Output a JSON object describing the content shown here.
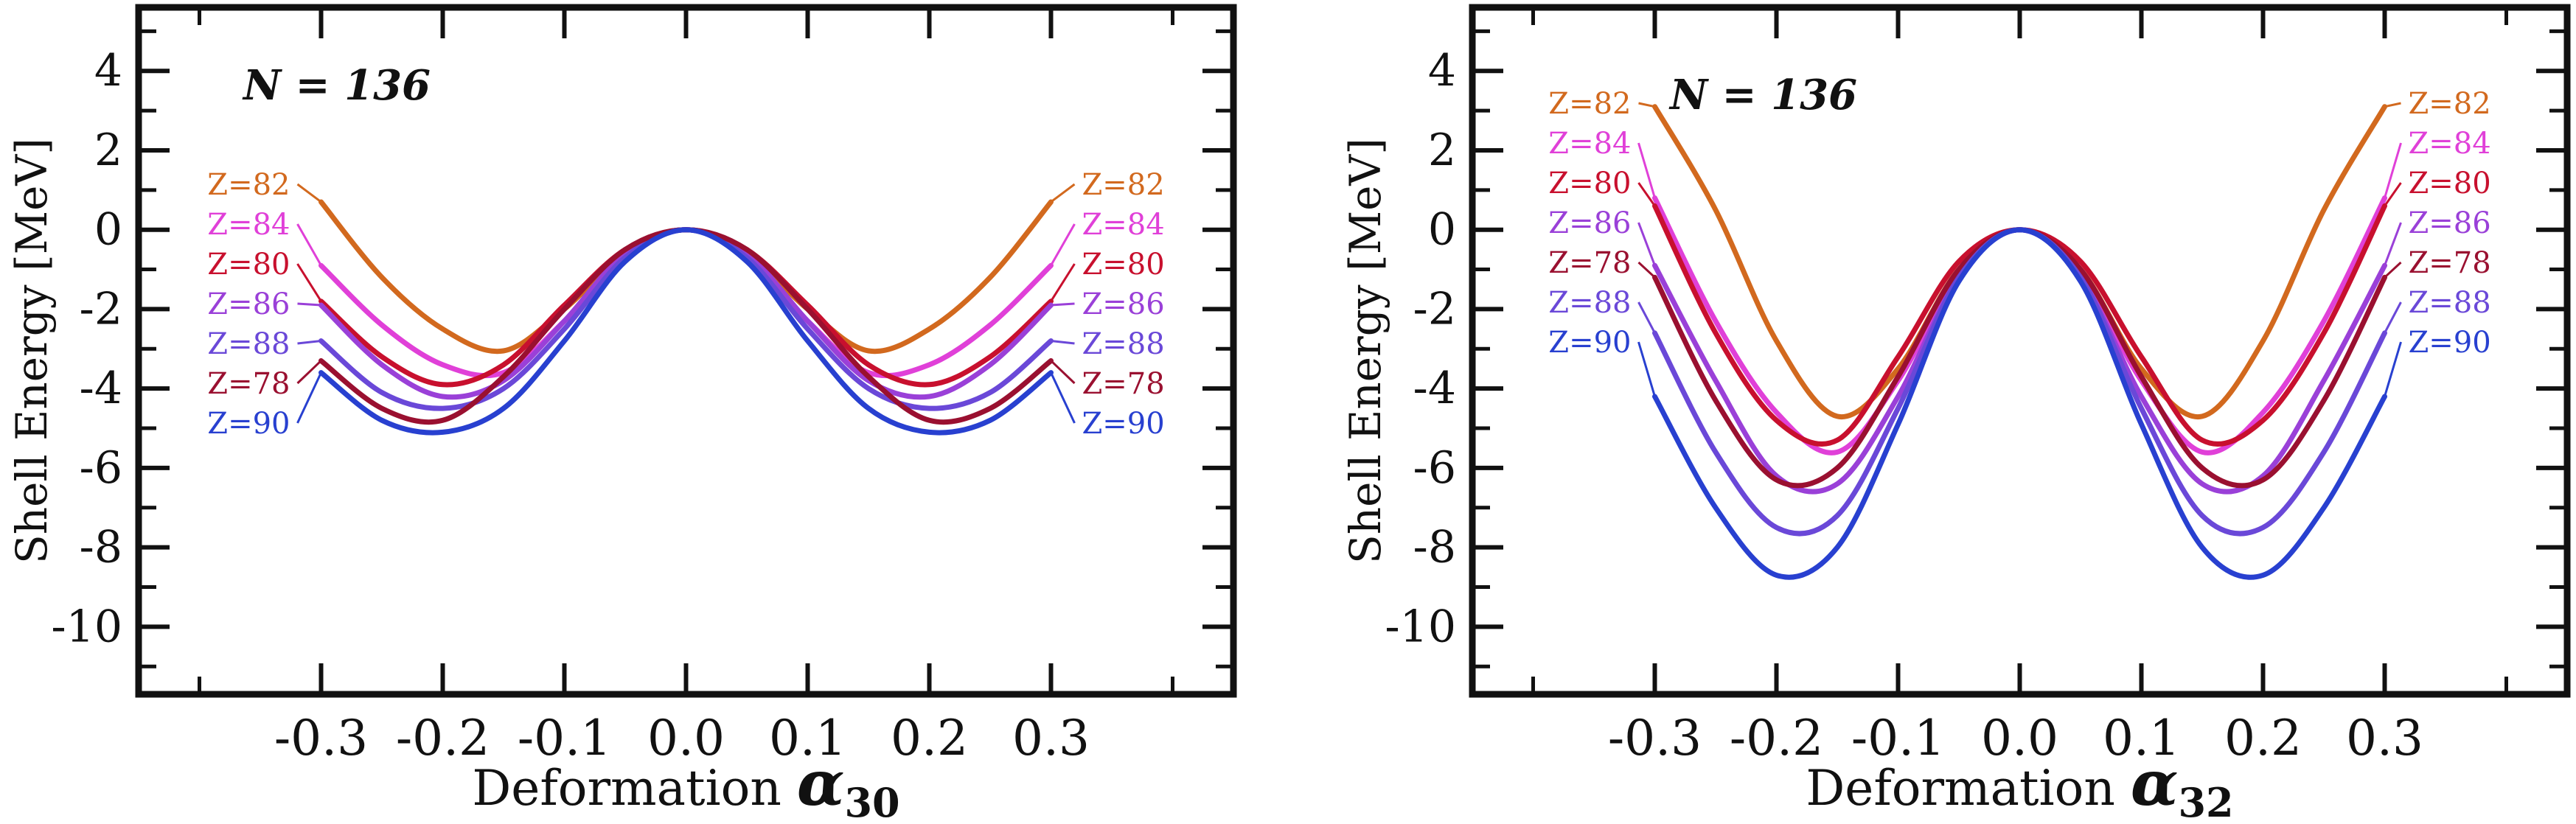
{
  "colors": {
    "Z=82": "#d2691e",
    "Z=84": "#e040d8",
    "Z=80": "#c8102e",
    "Z=86": "#9a40d8",
    "Z=88": "#6a48d8",
    "Z=78": "#9a1030",
    "Z=90": "#2840d0",
    "axis": "#111111"
  },
  "chart_data": [
    {
      "type": "line",
      "annotation": "N = 136",
      "xlabel": "Deformation",
      "xlabel_symbol": "α",
      "xlabel_subscript": "30",
      "ylabel": "Shell Energy [MeV]",
      "xlim": [
        -0.45,
        0.45
      ],
      "ylim": [
        -11.7,
        5.6
      ],
      "xticks": [
        "-0.3",
        "-0.2",
        "-0.1",
        "0.0",
        "0.1",
        "0.2",
        "0.3"
      ],
      "yticks": [
        "4",
        "2",
        "0",
        "-2",
        "-4",
        "-6",
        "-8",
        "-10"
      ],
      "label_order": [
        "Z=82",
        "Z=84",
        "Z=80",
        "Z=86",
        "Z=88",
        "Z=78",
        "Z=90"
      ],
      "x": [
        -0.3,
        -0.25,
        -0.2,
        -0.15,
        -0.1,
        -0.05,
        0.0,
        0.05,
        0.1,
        0.15,
        0.2,
        0.25,
        0.3
      ],
      "series": [
        {
          "name": "Z=82",
          "values": [
            0.7,
            -1.2,
            -2.5,
            -3.05,
            -2.0,
            -0.6,
            0.0,
            -0.6,
            -2.0,
            -3.05,
            -2.5,
            -1.2,
            0.7
          ]
        },
        {
          "name": "Z=84",
          "values": [
            -0.9,
            -2.4,
            -3.4,
            -3.6,
            -2.3,
            -0.7,
            0.0,
            -0.7,
            -2.3,
            -3.6,
            -3.4,
            -2.4,
            -0.9
          ]
        },
        {
          "name": "Z=80",
          "values": [
            -1.8,
            -3.2,
            -3.9,
            -3.4,
            -1.9,
            -0.5,
            0.0,
            -0.5,
            -1.9,
            -3.4,
            -3.9,
            -3.2,
            -1.8
          ]
        },
        {
          "name": "Z=86",
          "values": [
            -1.9,
            -3.4,
            -4.2,
            -3.8,
            -2.3,
            -0.6,
            0.0,
            -0.6,
            -2.3,
            -3.8,
            -4.2,
            -3.4,
            -1.9
          ]
        },
        {
          "name": "Z=88",
          "values": [
            -2.8,
            -4.1,
            -4.5,
            -4.0,
            -2.5,
            -0.7,
            0.0,
            -0.7,
            -2.5,
            -4.0,
            -4.5,
            -4.1,
            -2.8
          ]
        },
        {
          "name": "Z=78",
          "values": [
            -3.3,
            -4.5,
            -4.8,
            -3.7,
            -2.0,
            -0.5,
            0.0,
            -0.5,
            -2.0,
            -3.7,
            -4.8,
            -4.5,
            -3.3
          ]
        },
        {
          "name": "Z=90",
          "values": [
            -3.6,
            -4.8,
            -5.1,
            -4.5,
            -2.8,
            -0.8,
            0.0,
            -0.8,
            -2.8,
            -4.5,
            -5.1,
            -4.8,
            -3.6
          ]
        }
      ]
    },
    {
      "type": "line",
      "annotation": "N = 136",
      "xlabel": "Deformation",
      "xlabel_symbol": "α",
      "xlabel_subscript": "32",
      "ylabel": "Shell Energy [MeV]",
      "xlim": [
        -0.45,
        0.45
      ],
      "ylim": [
        -11.7,
        5.6
      ],
      "xticks": [
        "-0.3",
        "-0.2",
        "-0.1",
        "0.0",
        "0.1",
        "0.2",
        "0.3"
      ],
      "yticks": [
        "4",
        "2",
        "0",
        "-2",
        "-4",
        "-6",
        "-8",
        "-10"
      ],
      "label_order": [
        "Z=82",
        "Z=84",
        "Z=80",
        "Z=86",
        "Z=78",
        "Z=88",
        "Z=90"
      ],
      "x": [
        -0.3,
        -0.25,
        -0.2,
        -0.15,
        -0.1,
        -0.05,
        0.0,
        0.05,
        0.1,
        0.15,
        0.2,
        0.25,
        0.3
      ],
      "series": [
        {
          "name": "Z=82",
          "values": [
            3.1,
            0.5,
            -2.8,
            -4.7,
            -3.5,
            -1.0,
            0.0,
            -1.0,
            -3.5,
            -4.7,
            -2.8,
            0.5,
            3.1
          ]
        },
        {
          "name": "Z=84",
          "values": [
            0.8,
            -2.3,
            -4.6,
            -5.6,
            -3.8,
            -1.1,
            0.0,
            -1.1,
            -3.8,
            -5.6,
            -4.6,
            -2.3,
            0.8
          ]
        },
        {
          "name": "Z=80",
          "values": [
            0.6,
            -2.6,
            -4.8,
            -5.3,
            -3.2,
            -0.8,
            0.0,
            -0.8,
            -3.2,
            -5.3,
            -4.8,
            -2.6,
            0.6
          ]
        },
        {
          "name": "Z=86",
          "values": [
            -0.9,
            -3.8,
            -6.2,
            -6.4,
            -4.2,
            -1.2,
            0.0,
            -1.2,
            -4.2,
            -6.4,
            -6.2,
            -3.8,
            -0.9
          ]
        },
        {
          "name": "Z=78",
          "values": [
            -1.2,
            -4.3,
            -6.3,
            -6.0,
            -3.7,
            -1.0,
            0.0,
            -1.0,
            -3.7,
            -6.0,
            -6.3,
            -4.3,
            -1.2
          ]
        },
        {
          "name": "Z=88",
          "values": [
            -2.6,
            -5.6,
            -7.5,
            -7.2,
            -4.5,
            -1.2,
            0.0,
            -1.2,
            -4.5,
            -7.2,
            -7.5,
            -5.6,
            -2.6
          ]
        },
        {
          "name": "Z=90",
          "values": [
            -4.2,
            -7.0,
            -8.7,
            -8.0,
            -4.9,
            -1.3,
            0.0,
            -1.3,
            -4.9,
            -8.0,
            -8.7,
            -7.0,
            -4.2
          ]
        }
      ]
    }
  ]
}
